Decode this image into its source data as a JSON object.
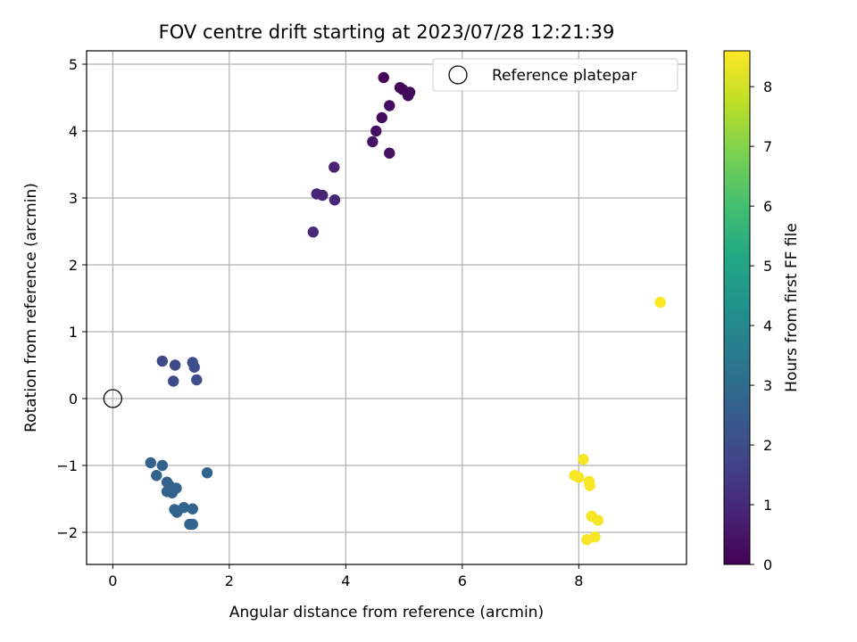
{
  "chart_data": {
    "type": "scatter",
    "title": "FOV centre drift starting at 2023/07/28 12:21:39",
    "xlabel": "Angular distance from reference (arcmin)",
    "ylabel": "Rotation from reference (arcmin)",
    "xlim": [
      -0.45,
      9.85
    ],
    "ylim": [
      -2.48,
      5.2
    ],
    "xticks": [
      0,
      2,
      4,
      6,
      8
    ],
    "yticks": [
      -2,
      -1,
      0,
      1,
      2,
      3,
      4,
      5
    ],
    "grid": true,
    "legend": {
      "position": "top-right",
      "entries": [
        "Reference platepar"
      ]
    },
    "reference": {
      "name": "Reference platepar",
      "x": 0,
      "y": 0
    },
    "colorbar": {
      "label": "Hours from first FF file",
      "range": [
        0,
        8.6
      ],
      "ticks": [
        0,
        1,
        2,
        3,
        4,
        5,
        6,
        7,
        8
      ],
      "colormap": "viridis"
    },
    "series": [
      {
        "points": [
          {
            "x": 4.65,
            "y": 4.8,
            "c": 0.1
          },
          {
            "x": 4.93,
            "y": 4.65,
            "c": 0.2
          },
          {
            "x": 4.98,
            "y": 4.62,
            "c": 0.2
          },
          {
            "x": 5.1,
            "y": 4.58,
            "c": 0.2
          },
          {
            "x": 5.07,
            "y": 4.53,
            "c": 0.2
          },
          {
            "x": 4.75,
            "y": 4.38,
            "c": 0.3
          },
          {
            "x": 4.62,
            "y": 4.2,
            "c": 0.3
          },
          {
            "x": 4.52,
            "y": 4.0,
            "c": 0.4
          },
          {
            "x": 4.46,
            "y": 3.84,
            "c": 0.4
          },
          {
            "x": 4.75,
            "y": 3.67,
            "c": 0.4
          },
          {
            "x": 3.8,
            "y": 3.46,
            "c": 0.8
          },
          {
            "x": 3.5,
            "y": 3.06,
            "c": 0.9
          },
          {
            "x": 3.6,
            "y": 3.04,
            "c": 0.9
          },
          {
            "x": 3.81,
            "y": 2.97,
            "c": 0.9
          },
          {
            "x": 3.44,
            "y": 2.49,
            "c": 1.0
          },
          {
            "x": 0.85,
            "y": 0.56,
            "c": 1.9
          },
          {
            "x": 1.07,
            "y": 0.5,
            "c": 1.9
          },
          {
            "x": 1.37,
            "y": 0.54,
            "c": 2.0
          },
          {
            "x": 1.4,
            "y": 0.47,
            "c": 2.0
          },
          {
            "x": 1.04,
            "y": 0.26,
            "c": 2.0
          },
          {
            "x": 1.44,
            "y": 0.28,
            "c": 2.0
          },
          {
            "x": 0.65,
            "y": -0.96,
            "c": 2.7
          },
          {
            "x": 0.85,
            "y": -1.0,
            "c": 2.7
          },
          {
            "x": 0.75,
            "y": -1.15,
            "c": 2.7
          },
          {
            "x": 0.93,
            "y": -1.25,
            "c": 2.7
          },
          {
            "x": 0.97,
            "y": -1.3,
            "c": 2.7
          },
          {
            "x": 1.09,
            "y": -1.34,
            "c": 2.7
          },
          {
            "x": 0.93,
            "y": -1.39,
            "c": 2.7
          },
          {
            "x": 1.02,
            "y": -1.41,
            "c": 2.7
          },
          {
            "x": 1.62,
            "y": -1.11,
            "c": 2.8
          },
          {
            "x": 1.06,
            "y": -1.66,
            "c": 2.8
          },
          {
            "x": 1.1,
            "y": -1.7,
            "c": 2.8
          },
          {
            "x": 1.22,
            "y": -1.63,
            "c": 2.8
          },
          {
            "x": 1.37,
            "y": -1.65,
            "c": 2.8
          },
          {
            "x": 1.32,
            "y": -1.88,
            "c": 2.8
          },
          {
            "x": 1.37,
            "y": -1.88,
            "c": 2.8
          },
          {
            "x": 9.4,
            "y": 1.44,
            "c": 8.6
          },
          {
            "x": 8.08,
            "y": -0.91,
            "c": 8.5
          },
          {
            "x": 7.93,
            "y": -1.15,
            "c": 8.5
          },
          {
            "x": 8.0,
            "y": -1.18,
            "c": 8.5
          },
          {
            "x": 8.18,
            "y": -1.24,
            "c": 8.5
          },
          {
            "x": 8.19,
            "y": -1.3,
            "c": 8.5
          },
          {
            "x": 8.22,
            "y": -1.76,
            "c": 8.5
          },
          {
            "x": 8.33,
            "y": -1.82,
            "c": 8.5
          },
          {
            "x": 8.28,
            "y": -2.07,
            "c": 8.5
          },
          {
            "x": 8.14,
            "y": -2.11,
            "c": 8.5
          }
        ]
      }
    ]
  }
}
